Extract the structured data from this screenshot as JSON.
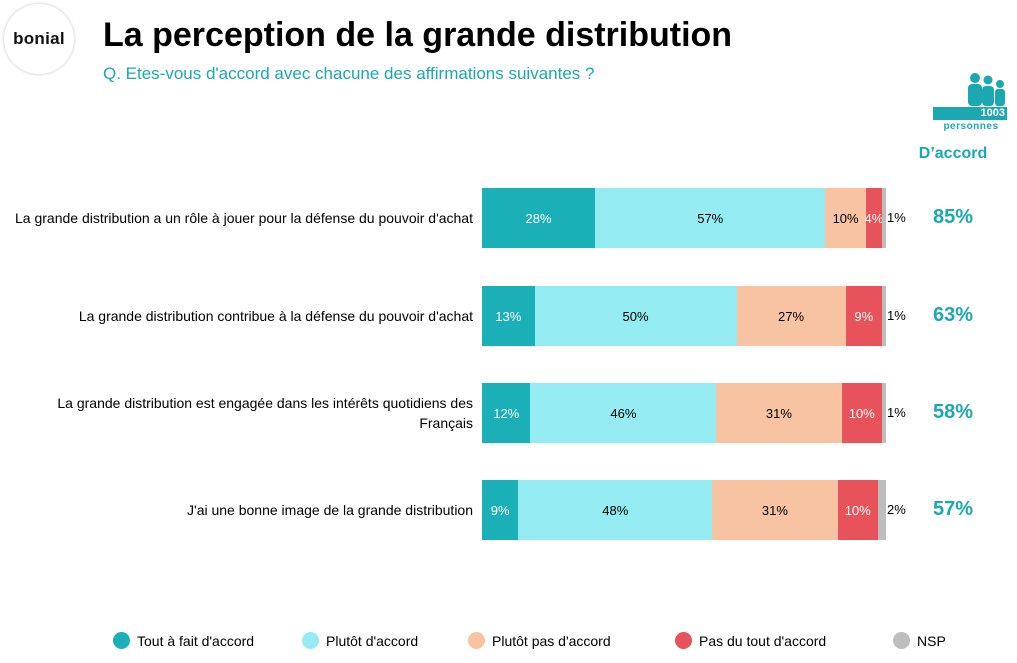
{
  "logo": "bonial",
  "title": "La perception de la grande distribution",
  "subtitle": "Q. Etes-vous d'accord avec chacune des affirmations suivantes ?",
  "sample": {
    "count": "1003",
    "label": "personnes"
  },
  "agree_header": "D’accord",
  "colors": {
    "tout_a_fait": "#1BB0B7",
    "plutot": "#94ECF2",
    "plutot_pas": "#F7C3A2",
    "pas_du_tout": "#E8525A",
    "nsp": "#BDBDBD",
    "accent": "#1BA8B0"
  },
  "chart_data": {
    "type": "bar",
    "orientation": "horizontal-stacked-100",
    "categories": [
      "La grande distribution a un rôle à jouer pour la défense du pouvoir d'achat",
      "La grande distribution contribue à la défense du pouvoir d'achat",
      "La grande distribution est engagée dans les intérêts quotidiens des Français",
      "J'ai une bonne image de la grande distribution"
    ],
    "series": [
      {
        "name": "Tout à fait d'accord",
        "values": [
          28,
          13,
          12,
          9
        ]
      },
      {
        "name": "Plutôt d'accord",
        "values": [
          57,
          50,
          46,
          48
        ]
      },
      {
        "name": "Plutôt pas d'accord",
        "values": [
          10,
          27,
          31,
          31
        ]
      },
      {
        "name": "Pas du tout d'accord",
        "values": [
          4,
          9,
          10,
          10
        ]
      },
      {
        "name": "NSP",
        "values": [
          1,
          1,
          1,
          2
        ]
      }
    ],
    "agree_totals": [
      "85%",
      "63%",
      "58%",
      "57%"
    ],
    "legend_position": "bottom",
    "grid": false
  }
}
